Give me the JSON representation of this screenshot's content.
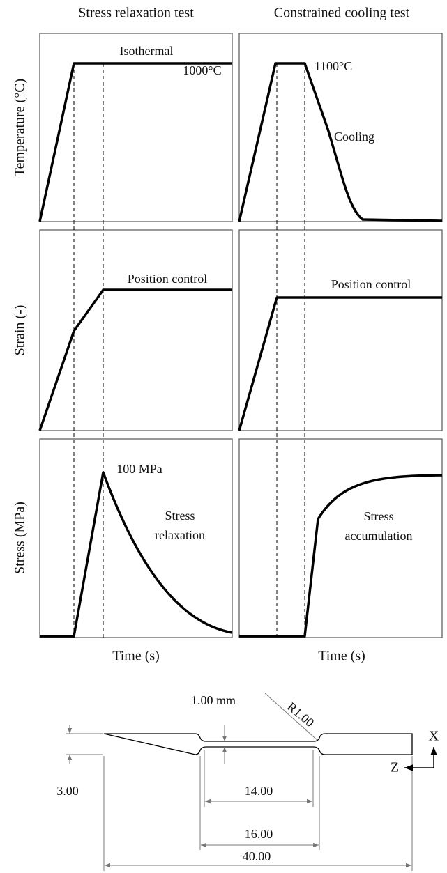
{
  "columns": [
    "Stress relaxation test",
    "Constrained cooling test"
  ],
  "rows": [
    "Temperature (°C)",
    "Strain (-)",
    "Stress (MPa)"
  ],
  "x_labels": [
    "Time (s)",
    "Time (s)"
  ],
  "annotations": {
    "isothermal": "Isothermal",
    "t1000": "1000°C",
    "t1100": "1100°C",
    "cooling": "Cooling",
    "pos1": "Position control",
    "pos2": "Position control",
    "peak": "100 MPa",
    "relax1": "Stress",
    "relax2": "relaxation",
    "accum1": "Stress",
    "accum2": "accumulation"
  },
  "specimen": {
    "thickness": "1.00 mm",
    "radius": "R1.00",
    "width": "3.00",
    "gauge": "14.00",
    "reduced": "16.00",
    "total": "40.00",
    "axis_x": "X",
    "axis_z": "Z"
  }
}
